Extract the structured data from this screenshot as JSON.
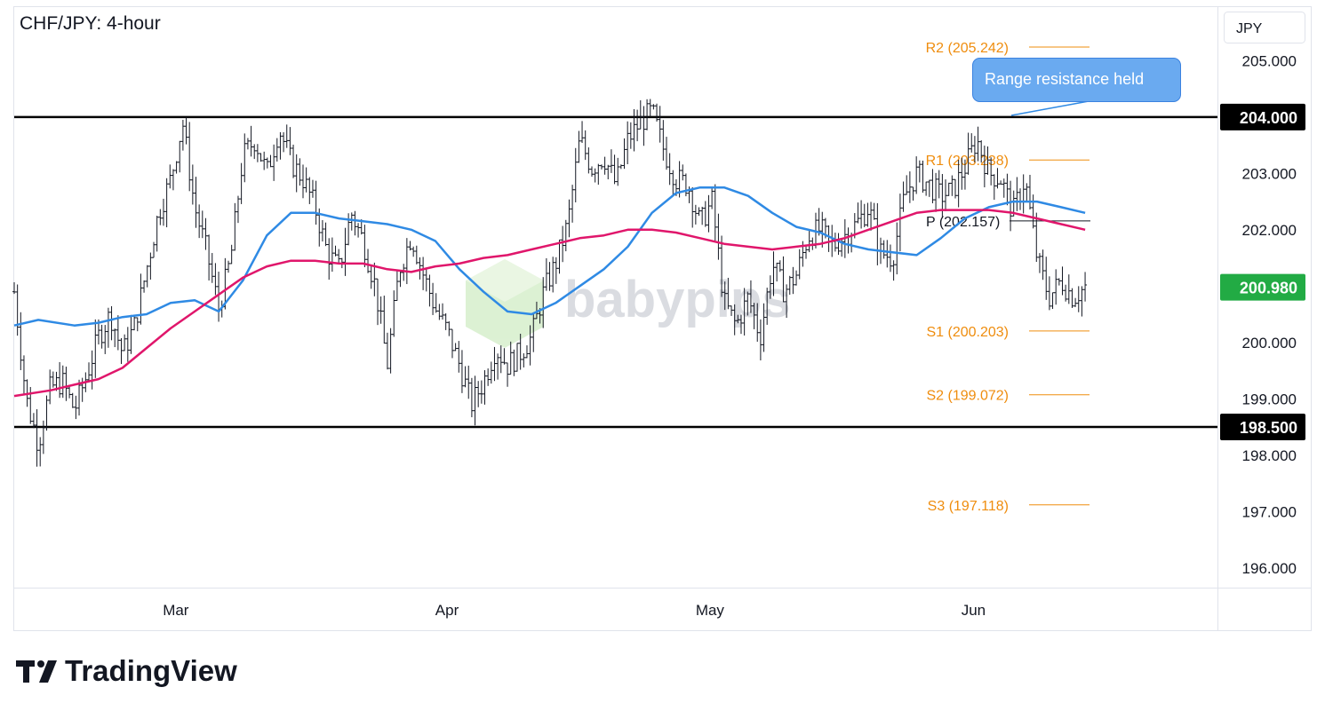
{
  "chart_data": {
    "type": "line",
    "title": "CHF/JPY: 4-hour",
    "currency": "JPY",
    "y_ticks": [
      "205.000",
      "203.000",
      "202.000",
      "200.000",
      "199.000",
      "198.000",
      "197.000",
      "196.000"
    ],
    "y_tick_values": [
      205,
      203,
      202,
      200,
      199,
      198,
      197,
      196
    ],
    "ylim": [
      195.65,
      205.95
    ],
    "x_months": [
      {
        "label": "Mar",
        "pos": 0.1343
      },
      {
        "label": "Apr",
        "pos": 0.3597
      },
      {
        "label": "May",
        "pos": 0.5782
      },
      {
        "label": "Jun",
        "pos": 0.7972
      }
    ],
    "last_price": {
      "label": "200.980",
      "value": 200.98,
      "color": "#22ab44"
    },
    "range_levels": [
      {
        "label": "204.000",
        "value": 204.0
      },
      {
        "label": "198.500",
        "value": 198.5
      }
    ],
    "pivot_levels": [
      {
        "name": "R2",
        "label": "R2 (205.242)",
        "value": 205.242
      },
      {
        "name": "R1",
        "label": "R1 (203.238)",
        "value": 203.238
      },
      {
        "name": "P",
        "label": "P (202.157)",
        "value": 202.157
      },
      {
        "name": "S1",
        "label": "S1 (200.203)",
        "value": 200.203
      },
      {
        "name": "S2",
        "label": "S2 (199.072)",
        "value": 199.072
      },
      {
        "name": "S3",
        "label": "S3 (197.118)",
        "value": 197.118
      }
    ],
    "annotation": {
      "text": "Range resistance held"
    },
    "price_path": [
      [
        0.0,
        200.9
      ],
      [
        0.01,
        199.0
      ],
      [
        0.02,
        198.2
      ],
      [
        0.03,
        199.2
      ],
      [
        0.04,
        199.3
      ],
      [
        0.05,
        198.8
      ],
      [
        0.06,
        199.4
      ],
      [
        0.07,
        200.1
      ],
      [
        0.08,
        200.5
      ],
      [
        0.09,
        199.8
      ],
      [
        0.1,
        200.3
      ],
      [
        0.11,
        201.3
      ],
      [
        0.12,
        202.3
      ],
      [
        0.13,
        202.9
      ],
      [
        0.14,
        203.9
      ],
      [
        0.15,
        202.4
      ],
      [
        0.16,
        201.6
      ],
      [
        0.17,
        200.6
      ],
      [
        0.18,
        201.5
      ],
      [
        0.19,
        203.3
      ],
      [
        0.2,
        203.6
      ],
      [
        0.21,
        203.0
      ],
      [
        0.22,
        203.8
      ],
      [
        0.23,
        203.2
      ],
      [
        0.24,
        202.9
      ],
      [
        0.25,
        202.4
      ],
      [
        0.26,
        201.6
      ],
      [
        0.27,
        201.3
      ],
      [
        0.28,
        202.3
      ],
      [
        0.29,
        201.8
      ],
      [
        0.3,
        201.0
      ],
      [
        0.31,
        199.6
      ],
      [
        0.32,
        201.3
      ],
      [
        0.33,
        201.9
      ],
      [
        0.34,
        201.2
      ],
      [
        0.35,
        200.6
      ],
      [
        0.36,
        200.2
      ],
      [
        0.37,
        199.6
      ],
      [
        0.38,
        198.9
      ],
      [
        0.39,
        199.3
      ],
      [
        0.4,
        199.9
      ],
      [
        0.41,
        199.6
      ],
      [
        0.42,
        199.8
      ],
      [
        0.43,
        200.1
      ],
      [
        0.44,
        200.9
      ],
      [
        0.45,
        201.4
      ],
      [
        0.46,
        202.1
      ],
      [
        0.47,
        203.6
      ],
      [
        0.48,
        203.1
      ],
      [
        0.49,
        203.3
      ],
      [
        0.5,
        202.8
      ],
      [
        0.51,
        203.6
      ],
      [
        0.52,
        203.9
      ],
      [
        0.53,
        204.1
      ],
      [
        0.54,
        203.4
      ],
      [
        0.55,
        202.9
      ],
      [
        0.56,
        202.8
      ],
      [
        0.57,
        202.1
      ],
      [
        0.58,
        202.5
      ],
      [
        0.59,
        200.7
      ],
      [
        0.6,
        200.3
      ],
      [
        0.61,
        200.8
      ],
      [
        0.62,
        200.1
      ],
      [
        0.63,
        201.4
      ],
      [
        0.64,
        200.9
      ],
      [
        0.65,
        201.2
      ],
      [
        0.66,
        201.9
      ],
      [
        0.67,
        202.0
      ],
      [
        0.68,
        201.7
      ],
      [
        0.69,
        201.9
      ],
      [
        0.7,
        202.1
      ],
      [
        0.71,
        202.4
      ],
      [
        0.72,
        201.6
      ],
      [
        0.73,
        201.5
      ],
      [
        0.74,
        202.6
      ],
      [
        0.75,
        203.0
      ],
      [
        0.76,
        202.8
      ],
      [
        0.77,
        202.6
      ],
      [
        0.78,
        202.7
      ],
      [
        0.79,
        203.1
      ],
      [
        0.8,
        203.6
      ],
      [
        0.81,
        203.0
      ],
      [
        0.82,
        202.9
      ],
      [
        0.83,
        202.3
      ],
      [
        0.84,
        202.9
      ],
      [
        0.85,
        201.5
      ],
      [
        0.86,
        200.8
      ],
      [
        0.87,
        201.1
      ],
      [
        0.88,
        200.8
      ],
      [
        0.89,
        200.98
      ]
    ],
    "series": [
      {
        "color": "#2f8ae4",
        "points": [
          [
            0.0,
            200.3
          ],
          [
            0.02,
            200.4
          ],
          [
            0.05,
            200.3
          ],
          [
            0.07,
            200.35
          ],
          [
            0.09,
            200.45
          ],
          [
            0.11,
            200.5
          ],
          [
            0.13,
            200.7
          ],
          [
            0.15,
            200.75
          ],
          [
            0.17,
            200.55
          ],
          [
            0.19,
            201.1
          ],
          [
            0.21,
            201.9
          ],
          [
            0.23,
            202.3
          ],
          [
            0.25,
            202.3
          ],
          [
            0.27,
            202.2
          ],
          [
            0.29,
            202.15
          ],
          [
            0.31,
            202.1
          ],
          [
            0.33,
            202.0
          ],
          [
            0.35,
            201.8
          ],
          [
            0.37,
            201.3
          ],
          [
            0.39,
            200.9
          ],
          [
            0.41,
            200.55
          ],
          [
            0.43,
            200.5
          ],
          [
            0.45,
            200.7
          ],
          [
            0.47,
            201.0
          ],
          [
            0.49,
            201.3
          ],
          [
            0.51,
            201.7
          ],
          [
            0.53,
            202.3
          ],
          [
            0.55,
            202.65
          ],
          [
            0.57,
            202.75
          ],
          [
            0.59,
            202.75
          ],
          [
            0.61,
            202.6
          ],
          [
            0.63,
            202.3
          ],
          [
            0.65,
            202.05
          ],
          [
            0.67,
            201.95
          ],
          [
            0.69,
            201.75
          ],
          [
            0.71,
            201.65
          ],
          [
            0.73,
            201.6
          ],
          [
            0.75,
            201.55
          ],
          [
            0.77,
            201.85
          ],
          [
            0.79,
            202.2
          ],
          [
            0.81,
            202.4
          ],
          [
            0.83,
            202.5
          ],
          [
            0.85,
            202.5
          ],
          [
            0.87,
            202.4
          ],
          [
            0.89,
            202.3
          ]
        ]
      },
      {
        "color": "#e0166b",
        "points": [
          [
            0.0,
            199.05
          ],
          [
            0.03,
            199.15
          ],
          [
            0.05,
            199.25
          ],
          [
            0.07,
            199.35
          ],
          [
            0.09,
            199.55
          ],
          [
            0.11,
            199.9
          ],
          [
            0.13,
            200.25
          ],
          [
            0.15,
            200.55
          ],
          [
            0.17,
            200.85
          ],
          [
            0.19,
            201.15
          ],
          [
            0.21,
            201.35
          ],
          [
            0.23,
            201.45
          ],
          [
            0.25,
            201.45
          ],
          [
            0.27,
            201.4
          ],
          [
            0.29,
            201.4
          ],
          [
            0.31,
            201.3
          ],
          [
            0.33,
            201.25
          ],
          [
            0.35,
            201.35
          ],
          [
            0.37,
            201.4
          ],
          [
            0.39,
            201.5
          ],
          [
            0.41,
            201.55
          ],
          [
            0.43,
            201.65
          ],
          [
            0.45,
            201.75
          ],
          [
            0.47,
            201.85
          ],
          [
            0.49,
            201.9
          ],
          [
            0.51,
            202.0
          ],
          [
            0.53,
            202.0
          ],
          [
            0.55,
            201.95
          ],
          [
            0.57,
            201.85
          ],
          [
            0.59,
            201.75
          ],
          [
            0.61,
            201.7
          ],
          [
            0.63,
            201.65
          ],
          [
            0.65,
            201.7
          ],
          [
            0.67,
            201.75
          ],
          [
            0.69,
            201.85
          ],
          [
            0.71,
            202.0
          ],
          [
            0.73,
            202.15
          ],
          [
            0.75,
            202.3
          ],
          [
            0.77,
            202.35
          ],
          [
            0.79,
            202.35
          ],
          [
            0.81,
            202.35
          ],
          [
            0.83,
            202.3
          ],
          [
            0.85,
            202.2
          ],
          [
            0.87,
            202.1
          ],
          [
            0.89,
            202.0
          ]
        ]
      }
    ],
    "grid": false
  },
  "branding": {
    "logo_text": "TradingView",
    "watermark_text": "babypips"
  }
}
